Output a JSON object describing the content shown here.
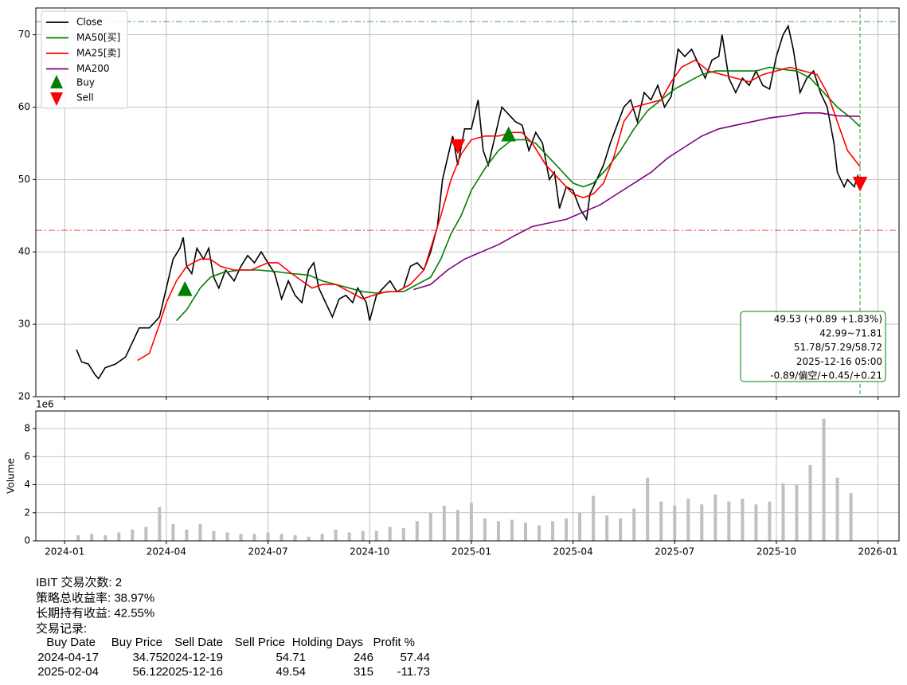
{
  "chart_data": [
    {
      "type": "line",
      "xlim": [
        -0.85,
        24.62
      ],
      "ylim": [
        20,
        73.7
      ],
      "yticks": [
        20,
        30,
        40,
        50,
        60,
        70
      ],
      "xticks": [
        {
          "value": 0,
          "label": "2024-01"
        },
        {
          "value": 3,
          "label": "2024-04"
        },
        {
          "value": 6,
          "label": "2024-07"
        },
        {
          "value": 9,
          "label": "2024-10"
        },
        {
          "value": 12,
          "label": "2025-01"
        },
        {
          "value": 15,
          "label": "2025-04"
        },
        {
          "value": 18,
          "label": "2025-07"
        },
        {
          "value": 21,
          "label": "2025-10"
        },
        {
          "value": 24,
          "label": "2026-01"
        }
      ],
      "grid": true,
      "legend": "upper left",
      "series": [
        {
          "name": "Close",
          "color": "#000000",
          "x": [
            0.35,
            0.5,
            0.7,
            0.9,
            1.0,
            1.2,
            1.5,
            1.8,
            2.0,
            2.2,
            2.5,
            2.8,
            3.0,
            3.2,
            3.4,
            3.5,
            3.6,
            3.75,
            3.9,
            4.1,
            4.25,
            4.4,
            4.55,
            4.75,
            5.0,
            5.2,
            5.4,
            5.6,
            5.8,
            6.0,
            6.2,
            6.4,
            6.6,
            6.8,
            7.0,
            7.2,
            7.35,
            7.5,
            7.7,
            7.9,
            8.1,
            8.3,
            8.5,
            8.65,
            8.9,
            9.0,
            9.2,
            9.4,
            9.6,
            9.8,
            10.0,
            10.2,
            10.4,
            10.6,
            10.8,
            11.0,
            11.15,
            11.3,
            11.45,
            11.6,
            11.8,
            12.0,
            12.2,
            12.35,
            12.5,
            12.7,
            12.9,
            13.1,
            13.3,
            13.5,
            13.7,
            13.9,
            14.1,
            14.3,
            14.45,
            14.6,
            14.8,
            15.0,
            15.2,
            15.4,
            15.5,
            15.7,
            15.9,
            16.1,
            16.3,
            16.5,
            16.7,
            16.9,
            17.1,
            17.3,
            17.5,
            17.7,
            17.9,
            18.1,
            18.3,
            18.5,
            18.7,
            18.9,
            19.1,
            19.3,
            19.4,
            19.6,
            19.8,
            20.0,
            20.2,
            20.4,
            20.6,
            20.8,
            21.0,
            21.2,
            21.35,
            21.5,
            21.7,
            21.9,
            22.1,
            22.3,
            22.5,
            22.7,
            22.8,
            23.0,
            23.1,
            23.3,
            23.4,
            23.47
          ],
          "values": [
            26.5,
            24.8,
            24.5,
            23.0,
            22.5,
            24.0,
            24.5,
            25.5,
            27.5,
            29.5,
            29.5,
            31,
            35,
            39,
            40.5,
            42,
            38,
            37,
            40.5,
            39,
            40.5,
            36.5,
            35,
            37.5,
            36,
            38,
            39.5,
            38.5,
            40,
            38.5,
            37,
            33.5,
            36,
            34,
            33,
            37.5,
            38.5,
            35,
            33,
            31,
            33.5,
            34,
            33,
            35,
            33,
            30.5,
            34,
            35,
            36,
            34.5,
            35,
            38,
            38.5,
            37.5,
            40,
            43.5,
            50,
            53,
            56,
            52,
            57,
            57,
            61,
            54,
            52,
            56,
            60,
            59,
            58,
            57.5,
            54,
            56.5,
            55,
            50,
            51,
            46,
            49,
            48.5,
            46,
            44.5,
            48,
            50,
            52,
            55,
            57.5,
            60,
            61,
            58,
            62,
            61,
            63,
            60,
            61.5,
            68,
            67,
            68,
            66,
            64,
            66.5,
            67,
            70,
            64,
            62,
            64,
            63,
            65,
            63,
            62.5,
            67,
            70,
            71.2,
            68,
            62,
            64,
            65,
            62,
            60,
            55,
            51,
            49,
            50,
            49,
            50.5,
            49.53
          ]
        },
        {
          "name": "MA50[买]",
          "color": "#008000",
          "x": [
            3.3,
            3.6,
            4.0,
            4.3,
            4.7,
            5.2,
            5.7,
            6.2,
            6.7,
            7.2,
            7.6,
            8.0,
            8.4,
            8.8,
            9.2,
            9.6,
            10.0,
            10.4,
            10.8,
            11.1,
            11.4,
            11.7,
            12.0,
            12.4,
            12.8,
            13.2,
            13.6,
            13.9,
            14.2,
            14.6,
            15.0,
            15.3,
            15.6,
            16.0,
            16.4,
            16.8,
            17.2,
            17.6,
            18.0,
            18.4,
            18.8,
            19.2,
            19.6,
            20.0,
            20.4,
            20.8,
            21.2,
            21.6,
            22.0,
            22.4,
            22.8,
            23.2,
            23.47
          ],
          "values": [
            30.5,
            32,
            35,
            36.5,
            37.2,
            37.5,
            37.5,
            37.3,
            37,
            36.8,
            36,
            35.5,
            35,
            34.5,
            34.3,
            34.5,
            34.5,
            35.5,
            36.5,
            39,
            42.5,
            45,
            48.5,
            51.5,
            54,
            55.5,
            55.5,
            55,
            53.5,
            51.5,
            49.5,
            49,
            49.5,
            51.5,
            54,
            57,
            59.5,
            61,
            62.5,
            63.5,
            64.5,
            65,
            65,
            65,
            65,
            65.5,
            65.2,
            65,
            64,
            62,
            60,
            58.5,
            57.29
          ]
        },
        {
          "name": "MA25[卖]",
          "color": "#ff0000",
          "x": [
            2.15,
            2.5,
            2.8,
            3.0,
            3.3,
            3.6,
            4.0,
            4.3,
            4.6,
            5.0,
            5.5,
            6.0,
            6.3,
            6.7,
            7.0,
            7.3,
            7.6,
            8.0,
            8.4,
            8.8,
            9.1,
            9.5,
            9.8,
            10.2,
            10.6,
            10.9,
            11.1,
            11.4,
            11.7,
            12.0,
            12.4,
            12.8,
            13.2,
            13.5,
            13.8,
            14.2,
            14.6,
            15.0,
            15.3,
            15.6,
            15.9,
            16.2,
            16.5,
            16.8,
            17.2,
            17.6,
            17.9,
            18.2,
            18.6,
            19.0,
            19.4,
            19.8,
            20.2,
            20.6,
            21.0,
            21.4,
            21.8,
            22.2,
            22.5,
            22.8,
            23.1,
            23.47
          ],
          "values": [
            25,
            26,
            30,
            33,
            36,
            38,
            39,
            39,
            38,
            37.5,
            37.5,
            38.5,
            38.5,
            37,
            36,
            35,
            35.5,
            35.5,
            34.5,
            33.5,
            34,
            34.5,
            34.5,
            35.5,
            37.5,
            42,
            45,
            50,
            53.5,
            55.5,
            56,
            56,
            56.5,
            56.5,
            55,
            52,
            50,
            48,
            47.5,
            48,
            49.5,
            53,
            58,
            60,
            60.5,
            61,
            63.5,
            65.5,
            66.5,
            65,
            64.5,
            64,
            63.5,
            64.5,
            65,
            65.5,
            65,
            64.5,
            62,
            58,
            54,
            51.78
          ]
        },
        {
          "name": "MA200",
          "color": "#800080",
          "x": [
            10.3,
            10.8,
            11.3,
            11.8,
            12.3,
            12.8,
            13.3,
            13.8,
            14.3,
            14.8,
            15.3,
            15.8,
            16.3,
            16.8,
            17.3,
            17.8,
            18.3,
            18.8,
            19.3,
            19.8,
            20.3,
            20.8,
            21.3,
            21.8,
            22.3,
            22.8,
            23.47
          ],
          "values": [
            34.8,
            35.5,
            37.5,
            39,
            40,
            41,
            42.3,
            43.5,
            44,
            44.5,
            45.5,
            46.5,
            48,
            49.5,
            51,
            53,
            54.5,
            56,
            57,
            57.5,
            58,
            58.5,
            58.8,
            59.2,
            59.2,
            58.8,
            58.72
          ]
        }
      ],
      "markers": [
        {
          "name": "Buy",
          "color": "#008000",
          "shape": "up",
          "x": [
            3.55,
            13.1
          ],
          "values": [
            34.75,
            56.12
          ]
        },
        {
          "name": "Sell",
          "color": "#ff0000",
          "shape": "down",
          "x": [
            11.6,
            23.47
          ],
          "values": [
            54.71,
            49.54
          ]
        }
      ],
      "hlines": [
        {
          "value": 42.99,
          "color": "#ff0000"
        },
        {
          "value": 71.81,
          "color": "#008000"
        }
      ],
      "vline": {
        "value": 23.47,
        "color": "#008000"
      },
      "annotation": [
        "49.53 (+0.89 +1.83%)",
        "42.99~71.81",
        "51.78/57.29/58.72",
        "2025-12-16 05:00",
        "-0.89/偏空/+0.45/+0.21"
      ]
    },
    {
      "type": "bar",
      "ylabel": "Volume",
      "offset_label": "1e6",
      "color": "#c0c0c0",
      "xlim": [
        -0.85,
        24.62
      ],
      "ylim": [
        0,
        9.25
      ],
      "yticks": [
        0,
        2,
        4,
        6,
        8
      ],
      "x": [
        0.4,
        0.8,
        1.2,
        1.6,
        2.0,
        2.4,
        2.8,
        3.2,
        3.6,
        4.0,
        4.4,
        4.8,
        5.2,
        5.6,
        6.0,
        6.4,
        6.8,
        7.2,
        7.6,
        8.0,
        8.4,
        8.8,
        9.2,
        9.6,
        10.0,
        10.4,
        10.8,
        11.2,
        11.6,
        12.0,
        12.4,
        12.8,
        13.2,
        13.6,
        14.0,
        14.4,
        14.8,
        15.2,
        15.6,
        16.0,
        16.4,
        16.8,
        17.2,
        17.6,
        18.0,
        18.4,
        18.8,
        19.2,
        19.6,
        20.0,
        20.4,
        20.8,
        21.2,
        21.6,
        22.0,
        22.4,
        22.8,
        23.2
      ],
      "values": [
        0.4,
        0.5,
        0.4,
        0.6,
        0.8,
        1.0,
        2.4,
        1.2,
        0.8,
        1.2,
        0.7,
        0.6,
        0.5,
        0.5,
        0.6,
        0.5,
        0.4,
        0.3,
        0.5,
        0.8,
        0.6,
        0.7,
        0.7,
        1.0,
        0.9,
        1.4,
        2.0,
        2.5,
        2.2,
        2.7,
        1.6,
        1.4,
        1.5,
        1.3,
        1.1,
        1.4,
        1.6,
        2.0,
        3.2,
        1.8,
        1.6,
        2.3,
        4.5,
        2.8,
        2.5,
        3.0,
        2.6,
        3.3,
        2.8,
        3.0,
        2.6,
        2.8,
        4.1,
        4.0,
        5.4,
        8.7,
        4.5,
        3.4
      ]
    }
  ],
  "report": {
    "lines": [
      "IBIT 交易次数: 2",
      "策略总收益率: 38.97%",
      "长期持有收益: 42.55%",
      "交易记录:"
    ],
    "table": {
      "header": [
        "Buy Date",
        "Buy Price",
        "Sell Date",
        "Sell Price",
        "Holding Days",
        "Profit %"
      ],
      "rows": [
        [
          "2024-04-17",
          34.75,
          "2024-12-19",
          54.71,
          246,
          57.44
        ],
        [
          "2025-02-04",
          56.12,
          "2025-12-16",
          49.54,
          315,
          -11.73
        ]
      ]
    }
  }
}
